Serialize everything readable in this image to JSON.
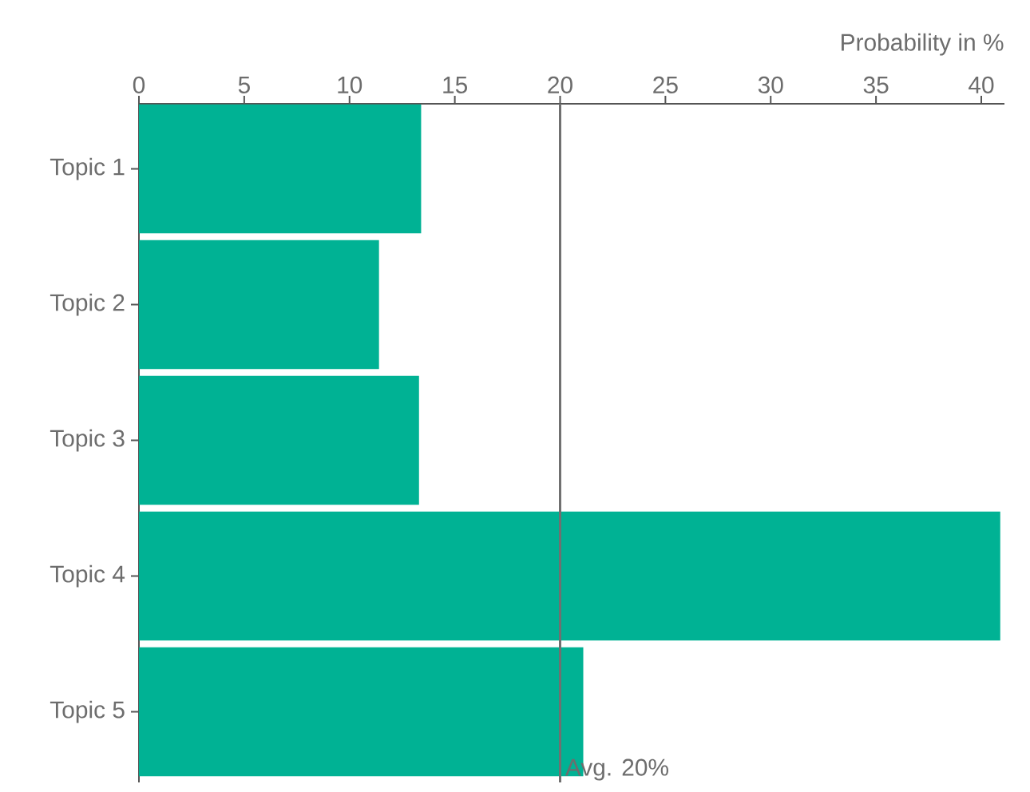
{
  "chart_data": {
    "type": "bar",
    "orientation": "horizontal",
    "xlabel": "Probability in %",
    "categories": [
      "Topic 1",
      "Topic 2",
      "Topic 3",
      "Topic 4",
      "Topic 5"
    ],
    "values": [
      13.4,
      11.4,
      13.3,
      40.9,
      21.1
    ],
    "color": "#00b294",
    "xlim": [
      0,
      41.1
    ],
    "xticks": [
      0,
      5,
      10,
      15,
      20,
      25,
      30,
      35,
      40
    ],
    "ref_lines": [
      {
        "axis": "x",
        "value": 20,
        "label": "Avg. 20%",
        "color": "#707070"
      }
    ]
  }
}
